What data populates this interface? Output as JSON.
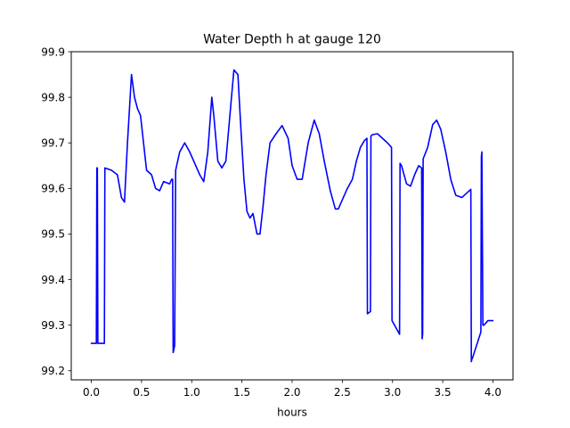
{
  "chart_data": {
    "type": "line",
    "title": "Water Depth h at gauge 120",
    "xlabel": "hours",
    "ylabel": "",
    "xlim": [
      -0.2,
      4.2
    ],
    "ylim": [
      99.18,
      99.9
    ],
    "xticks": [
      0.0,
      0.5,
      1.0,
      1.5,
      2.0,
      2.5,
      3.0,
      3.5,
      4.0
    ],
    "xtick_labels": [
      "0.0",
      "0.5",
      "1.0",
      "1.5",
      "2.0",
      "2.5",
      "3.0",
      "3.5",
      "4.0"
    ],
    "yticks": [
      99.2,
      99.3,
      99.4,
      99.5,
      99.6,
      99.7,
      99.8,
      99.9
    ],
    "ytick_labels": [
      "99.2",
      "99.3",
      "99.4",
      "99.5",
      "99.6",
      "99.7",
      "99.8",
      "99.9"
    ],
    "grid": false,
    "series": [
      {
        "color": "#0000ff",
        "x": [
          0.0,
          0.05,
          0.055,
          0.06,
          0.065,
          0.1,
          0.13,
          0.135,
          0.2,
          0.26,
          0.3,
          0.33,
          0.36,
          0.4,
          0.43,
          0.46,
          0.49,
          0.52,
          0.55,
          0.6,
          0.64,
          0.68,
          0.72,
          0.78,
          0.8,
          0.81,
          0.815,
          0.83,
          0.84,
          0.88,
          0.93,
          0.98,
          1.03,
          1.08,
          1.12,
          1.16,
          1.2,
          1.22,
          1.26,
          1.3,
          1.34,
          1.38,
          1.42,
          1.46,
          1.49,
          1.52,
          1.55,
          1.58,
          1.61,
          1.65,
          1.68,
          1.71,
          1.74,
          1.78,
          1.84,
          1.9,
          1.96,
          2.0,
          2.05,
          2.1,
          2.16,
          2.22,
          2.27,
          2.32,
          2.38,
          2.43,
          2.46,
          2.5,
          2.55,
          2.6,
          2.64,
          2.68,
          2.72,
          2.745,
          2.75,
          2.78,
          2.785,
          2.8,
          2.85,
          2.9,
          2.95,
          2.99,
          2.995,
          3.02,
          3.07,
          3.075,
          3.09,
          3.14,
          3.18,
          3.22,
          3.26,
          3.29,
          3.295,
          3.3,
          3.305,
          3.35,
          3.4,
          3.44,
          3.48,
          3.53,
          3.58,
          3.63,
          3.69,
          3.74,
          3.78,
          3.785,
          3.79,
          3.8,
          3.88,
          3.885,
          3.89,
          3.9,
          3.91,
          3.95,
          4.0
        ],
        "y": [
          99.26,
          99.26,
          99.645,
          99.645,
          99.26,
          99.26,
          99.26,
          99.645,
          99.64,
          99.63,
          99.58,
          99.57,
          99.7,
          99.85,
          99.8,
          99.775,
          99.76,
          99.7,
          99.64,
          99.63,
          99.6,
          99.595,
          99.615,
          99.61,
          99.62,
          99.62,
          99.24,
          99.255,
          99.64,
          99.68,
          99.7,
          99.68,
          99.655,
          99.63,
          99.615,
          99.68,
          99.8,
          99.76,
          99.66,
          99.645,
          99.66,
          99.76,
          99.86,
          99.85,
          99.73,
          99.62,
          99.55,
          99.535,
          99.545,
          99.5,
          99.5,
          99.56,
          99.63,
          99.7,
          99.72,
          99.738,
          99.71,
          99.65,
          99.62,
          99.62,
          99.7,
          99.75,
          99.72,
          99.66,
          99.595,
          99.555,
          99.555,
          99.575,
          99.6,
          99.62,
          99.66,
          99.69,
          99.705,
          99.71,
          99.325,
          99.33,
          99.715,
          99.718,
          99.72,
          99.71,
          99.7,
          99.69,
          99.31,
          99.3,
          99.28,
          99.655,
          99.65,
          99.61,
          99.605,
          99.63,
          99.65,
          99.645,
          99.27,
          99.28,
          99.665,
          99.69,
          99.74,
          99.75,
          99.73,
          99.68,
          99.62,
          99.585,
          99.58,
          99.59,
          99.598,
          99.22,
          99.225,
          99.23,
          99.285,
          99.67,
          99.68,
          99.3,
          99.3,
          99.31,
          99.31
        ]
      }
    ]
  }
}
